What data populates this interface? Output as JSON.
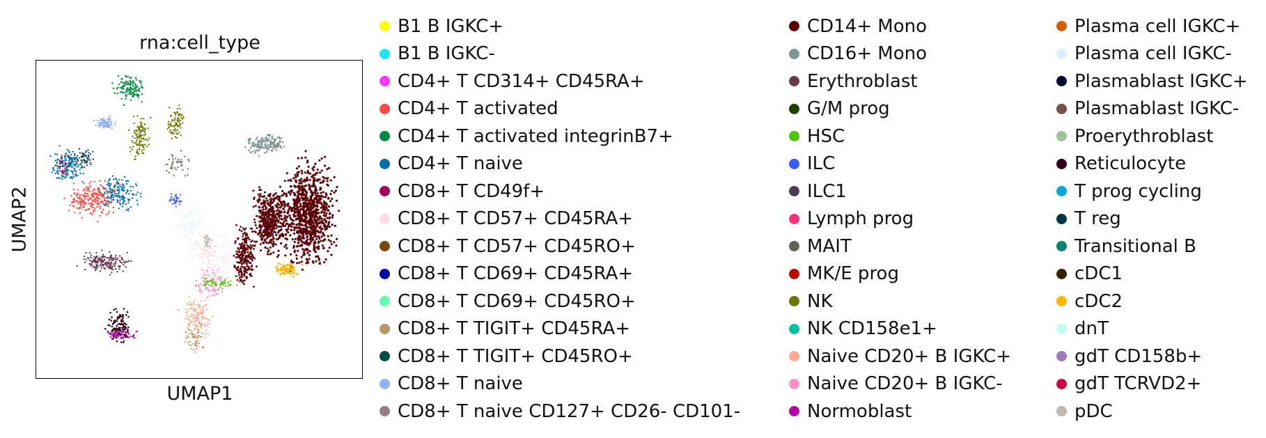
{
  "chart_data": {
    "type": "scatter",
    "title": "rna:cell_type",
    "xlabel": "UMAP1",
    "ylabel": "UMAP2",
    "grid": false,
    "legend_placement": "right",
    "legend": [
      {
        "name": "B1 B IGKC+",
        "color": "#ffff00"
      },
      {
        "name": "B1 B IGKC-",
        "color": "#1ce6ff"
      },
      {
        "name": "CD4+ T CD314+ CD45RA+",
        "color": "#ff34ff"
      },
      {
        "name": "CD4+ T activated",
        "color": "#ff4a46"
      },
      {
        "name": "CD4+ T activated integrinB7+",
        "color": "#008941"
      },
      {
        "name": "CD4+ T naive",
        "color": "#006fa6"
      },
      {
        "name": "CD8+ T CD49f+",
        "color": "#a30059"
      },
      {
        "name": "CD8+ T CD57+ CD45RA+",
        "color": "#ffdbe5"
      },
      {
        "name": "CD8+ T CD57+ CD45RO+",
        "color": "#7a4900"
      },
      {
        "name": "CD8+ T CD69+ CD45RA+",
        "color": "#0000a6"
      },
      {
        "name": "CD8+ T CD69+ CD45RO+",
        "color": "#63ffac"
      },
      {
        "name": "CD8+ T TIGIT+ CD45RA+",
        "color": "#b79762"
      },
      {
        "name": "CD8+ T TIGIT+ CD45RO+",
        "color": "#004d43"
      },
      {
        "name": "CD8+ T naive",
        "color": "#8fb0ff"
      },
      {
        "name": "CD8+ T naive CD127+ CD26- CD101-",
        "color": "#997d87"
      },
      {
        "name": "CD14+ Mono",
        "color": "#5a0007"
      },
      {
        "name": "CD16+ Mono",
        "color": "#809693"
      },
      {
        "name": "Erythroblast",
        "color": "#6a3a4c"
      },
      {
        "name": "G/M prog",
        "color": "#1b4400"
      },
      {
        "name": "HSC",
        "color": "#4fc601"
      },
      {
        "name": "ILC",
        "color": "#3b5dff"
      },
      {
        "name": "ILC1",
        "color": "#4a3b53"
      },
      {
        "name": "Lymph prog",
        "color": "#ff2f80"
      },
      {
        "name": "MAIT",
        "color": "#61615a"
      },
      {
        "name": "MK/E prog",
        "color": "#ba0900"
      },
      {
        "name": "NK",
        "color": "#6b7900"
      },
      {
        "name": "NK CD158e1+",
        "color": "#00c2a0"
      },
      {
        "name": "Naive CD20+ B IGKC+",
        "color": "#ffaa92"
      },
      {
        "name": "Naive CD20+ B IGKC-",
        "color": "#ff90c9"
      },
      {
        "name": "Normoblast",
        "color": "#b903aa"
      },
      {
        "name": "Plasma cell IGKC+",
        "color": "#d16100"
      },
      {
        "name": "Plasma cell IGKC-",
        "color": "#ddefff"
      },
      {
        "name": "Plasmablast IGKC+",
        "color": "#000035"
      },
      {
        "name": "Plasmablast IGKC-",
        "color": "#7b4f4b"
      },
      {
        "name": "Proerythroblast",
        "color": "#a1c299"
      },
      {
        "name": "Reticulocyte",
        "color": "#300018"
      },
      {
        "name": "T prog cycling",
        "color": "#0aa6d8"
      },
      {
        "name": "T reg",
        "color": "#013349"
      },
      {
        "name": "Transitional B",
        "color": "#00846f"
      },
      {
        "name": "cDC1",
        "color": "#372101"
      },
      {
        "name": "cDC2",
        "color": "#ffb500"
      },
      {
        "name": "dnT",
        "color": "#c2ffed"
      },
      {
        "name": "gdT CD158b+",
        "color": "#a079bf"
      },
      {
        "name": "gdT TCRVD2+",
        "color": "#cc0744"
      },
      {
        "name": "pDC",
        "color": "#c0b9b2"
      }
    ]
  }
}
